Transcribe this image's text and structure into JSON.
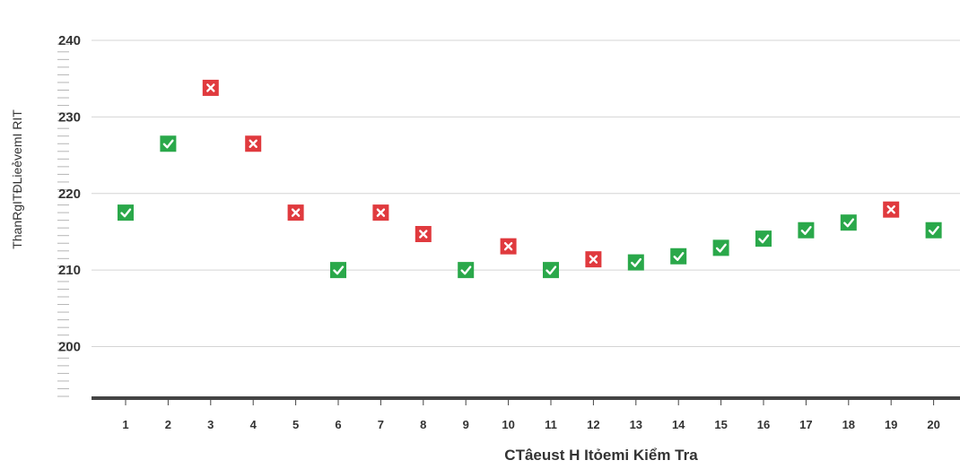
{
  "chart_data": {
    "type": "scatter",
    "title": "",
    "xlabel": "CTâeust H Itỏemi Kiểm Tra",
    "ylabel": "ThanRgITĐLieẻvemI RIT",
    "ylim": [
      193.5,
      240
    ],
    "yticks": [
      200,
      210,
      220,
      230,
      240
    ],
    "x": [
      1,
      2,
      3,
      4,
      5,
      6,
      7,
      8,
      9,
      10,
      11,
      12,
      13,
      14,
      15,
      16,
      17,
      18,
      19,
      20
    ],
    "series": [
      {
        "values": [
          217.5,
          226.5,
          233.8,
          226.5,
          217.5,
          210,
          217.5,
          214.7,
          210,
          213.1,
          210,
          211.4,
          211,
          211.8,
          212.9,
          214.1,
          215.2,
          216.2,
          217.9,
          215.2
        ],
        "status": [
          "pass",
          "pass",
          "fail",
          "fail",
          "fail",
          "pass",
          "fail",
          "fail",
          "pass",
          "fail",
          "pass",
          "fail",
          "pass",
          "pass",
          "pass",
          "pass",
          "pass",
          "pass",
          "fail",
          "pass"
        ]
      }
    ],
    "grid": true,
    "legend": "none",
    "colors": {
      "pass": "#2aa84a",
      "fail": "#e03a3e",
      "grid": "#d4d4d4",
      "axis": "#444444",
      "text": "#333333"
    }
  }
}
